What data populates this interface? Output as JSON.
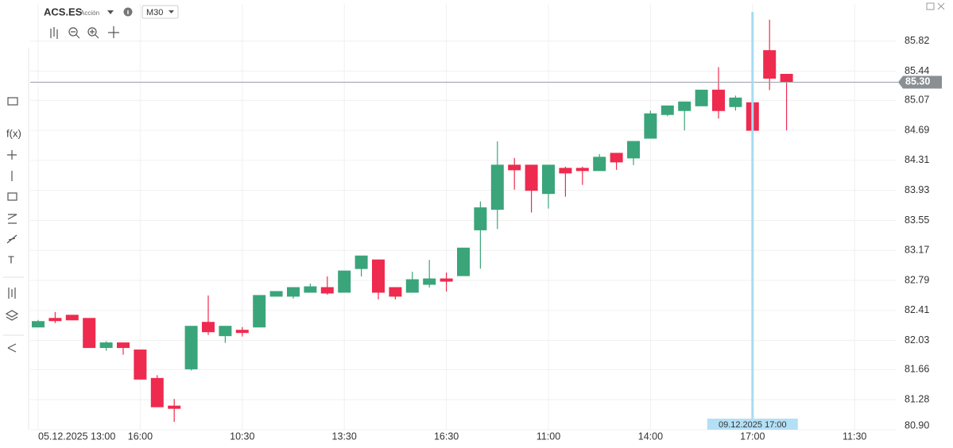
{
  "header": {
    "symbol": "ACS.ES",
    "asset_type": "Acción",
    "timeframe": "M30"
  },
  "toolbar": {
    "function": "f(x)",
    "text_tool": "T"
  },
  "chart_data": {
    "type": "candlestick",
    "categories": [
      "05.12.2025 13:00",
      null,
      null,
      null,
      null,
      null,
      "16:00",
      null,
      null,
      null,
      null,
      null,
      "10:30",
      null,
      null,
      null,
      null,
      null,
      "13:30",
      null,
      null,
      null,
      null,
      null,
      "16:30",
      null,
      null,
      null,
      null,
      null,
      "11:00",
      null,
      null,
      null,
      null,
      null,
      "14:00",
      null,
      null,
      null,
      null,
      null,
      "17:00",
      null,
      null,
      null,
      null,
      null,
      "11:30"
    ],
    "open": [
      82.2,
      82.31,
      82.35,
      82.31,
      81.94,
      82.0,
      81.91,
      81.55,
      81.2,
      81.67,
      82.26,
      82.09,
      82.16,
      82.2,
      82.59,
      82.59,
      82.64,
      82.7,
      82.64,
      82.94,
      83.05,
      82.7,
      82.64,
      82.74,
      82.81,
      82.85,
      83.43,
      83.69,
      84.25,
      84.25,
      83.89,
      84.21,
      84.21,
      84.18,
      84.4,
      84.34,
      84.59,
      84.89,
      84.94,
      85.0,
      85.2,
      84.99,
      85.04,
      85.7,
      85.4,
      null,
      null,
      null,
      null
    ],
    "high": [
      82.29,
      82.39,
      82.35,
      82.31,
      82.02,
      82.0,
      81.91,
      81.59,
      81.29,
      82.21,
      82.6,
      82.21,
      82.2,
      82.6,
      82.65,
      82.7,
      82.75,
      82.84,
      82.91,
      83.1,
      83.05,
      82.7,
      82.9,
      83.05,
      82.89,
      83.2,
      83.79,
      84.55,
      84.34,
      84.25,
      84.25,
      84.23,
      84.23,
      84.39,
      84.4,
      84.55,
      84.94,
      85.0,
      85.05,
      85.2,
      85.49,
      85.13,
      85.04,
      86.09,
      85.4,
      null,
      null,
      null,
      null
    ],
    "low": [
      82.2,
      82.25,
      82.29,
      81.94,
      81.9,
      81.85,
      81.54,
      81.19,
      81.0,
      81.65,
      82.1,
      82.0,
      82.08,
      82.2,
      82.59,
      82.56,
      82.64,
      82.61,
      82.64,
      82.84,
      82.55,
      82.55,
      82.64,
      82.7,
      82.65,
      82.85,
      82.94,
      83.44,
      83.94,
      83.65,
      83.7,
      83.85,
      84.0,
      84.18,
      84.19,
      84.25,
      84.59,
      84.87,
      84.69,
      85.0,
      84.84,
      84.94,
      84.69,
      85.2,
      84.69,
      null,
      null,
      null,
      null
    ],
    "close": [
      82.27,
      82.28,
      82.29,
      81.94,
      82.0,
      81.94,
      81.54,
      81.19,
      81.17,
      82.21,
      82.14,
      82.21,
      82.13,
      82.6,
      82.65,
      82.7,
      82.71,
      82.63,
      82.91,
      83.1,
      82.64,
      82.59,
      82.8,
      82.81,
      82.78,
      83.2,
      83.71,
      84.25,
      84.19,
      83.93,
      84.25,
      84.15,
      84.18,
      84.35,
      84.29,
      84.55,
      84.9,
      85.0,
      85.05,
      85.2,
      84.94,
      85.1,
      84.69,
      85.35,
      85.3,
      null,
      null,
      null,
      null
    ],
    "up_color": "#3aa57a",
    "down_color": "#ee2a4f",
    "ylim": [
      80.9,
      86.29
    ],
    "yticks": [
      85.82,
      85.44,
      85.07,
      84.69,
      84.31,
      83.93,
      83.55,
      83.17,
      82.79,
      82.41,
      82.03,
      81.66,
      81.28,
      {
        "value": 80.9,
        "label": "80.90"
      }
    ],
    "grid": true,
    "last_price": {
      "value": 85.3,
      "label": "85.30"
    },
    "crosshair_label": "09.12.2025 17:00"
  }
}
